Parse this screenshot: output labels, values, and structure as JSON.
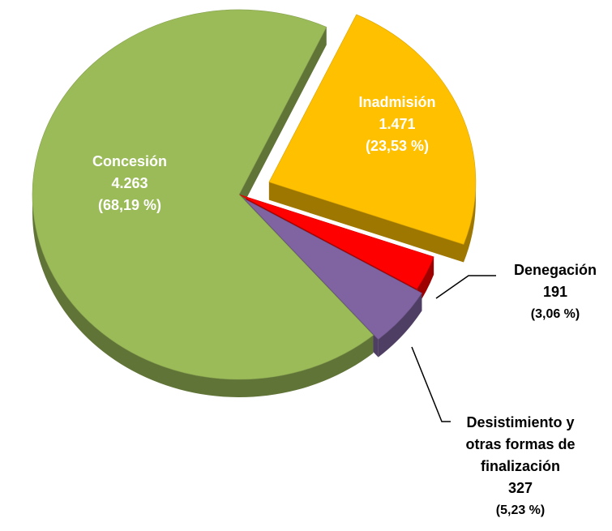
{
  "chart_data": {
    "type": "pie",
    "categories": [
      "Inadmisión",
      "Denegación",
      "Desistimiento y otras formas de finalización",
      "Concesión"
    ],
    "values": [
      1471,
      191,
      327,
      4263
    ],
    "value_labels": [
      "1.471",
      "191",
      "327",
      "4.263"
    ],
    "percentages": [
      23.53,
      3.06,
      5.23,
      68.19
    ],
    "percentage_labels": [
      "(23,53 %)",
      "(3,06 %)",
      "(5,23 %)",
      "(68,19 %)"
    ],
    "colors": [
      "#ffc000",
      "#ff0000",
      "#8064a2",
      "#9bbb59"
    ]
  }
}
